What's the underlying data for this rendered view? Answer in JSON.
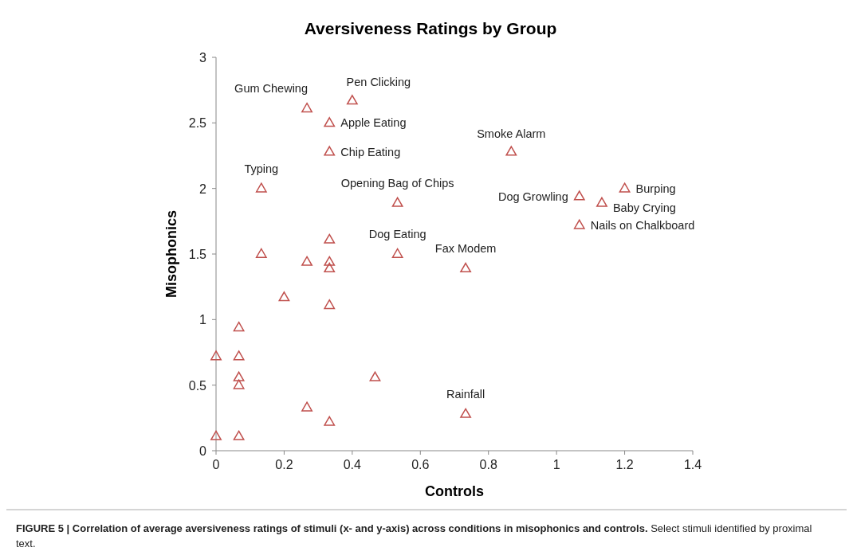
{
  "chart_data": {
    "type": "scatter",
    "title": "Aversiveness Ratings by Group",
    "xlabel": "Controls",
    "ylabel": "Misophonics",
    "x": [
      0.267,
      0.4,
      0.333,
      0.333,
      0.867,
      0.133,
      0.533,
      1.067,
      1.2,
      1.133,
      1.067,
      0.533,
      0.733,
      0.133,
      0.267,
      0.333,
      0.333,
      0.333,
      0.2,
      0.333,
      0.067,
      0,
      0.067,
      0.067,
      0.067,
      0.467,
      0.267,
      0.333,
      0.733,
      0,
      0.067
    ],
    "values": [
      2.61,
      2.67,
      2.5,
      2.28,
      2.28,
      2.0,
      1.89,
      1.94,
      2.0,
      1.89,
      1.72,
      1.5,
      1.39,
      1.5,
      1.44,
      1.61,
      1.44,
      1.39,
      1.17,
      1.11,
      0.94,
      0.72,
      0.72,
      0.56,
      0.5,
      0.56,
      0.33,
      0.22,
      0.28,
      0.11,
      0.11
    ],
    "color": "#c0504d",
    "marker": "triangle",
    "xlim": [
      0,
      1.4
    ],
    "xticks": [
      0,
      0.2,
      0.4,
      0.6,
      0.8,
      1,
      1.2,
      1.4
    ],
    "ylim": [
      0,
      3
    ],
    "yticks": [
      0,
      0.5,
      1,
      1.5,
      2,
      2.5,
      3
    ],
    "annotations": [
      {
        "text": "Gum Chewing",
        "x": 0.267,
        "y": 2.61
      },
      {
        "text": "Pen Clicking",
        "x": 0.4,
        "y": 2.67
      },
      {
        "text": "Apple Eating",
        "x": 0.333,
        "y": 2.5
      },
      {
        "text": "Chip Eating",
        "x": 0.333,
        "y": 2.28
      },
      {
        "text": "Smoke Alarm",
        "x": 0.867,
        "y": 2.28
      },
      {
        "text": "Typing",
        "x": 0.133,
        "y": 2.0
      },
      {
        "text": "Opening Bag of Chips",
        "x": 0.533,
        "y": 1.89
      },
      {
        "text": "Dog Growling",
        "x": 1.067,
        "y": 1.94
      },
      {
        "text": "Burping",
        "x": 1.2,
        "y": 2.0
      },
      {
        "text": "Baby Crying",
        "x": 1.133,
        "y": 1.89
      },
      {
        "text": "Nails on Chalkboard",
        "x": 1.067,
        "y": 1.72
      },
      {
        "text": "Dog Eating",
        "x": 0.533,
        "y": 1.5
      },
      {
        "text": "Fax Modem",
        "x": 0.733,
        "y": 1.39
      },
      {
        "text": "Rainfall",
        "x": 0.733,
        "y": 0.28
      },
      "FIGURE 5 | Correlation of average aversiveness ratings of stimuli (x- and y-axis) across conditions in misophonics and controls.",
      "Select stimuli identified by proximal text."
    ]
  }
}
